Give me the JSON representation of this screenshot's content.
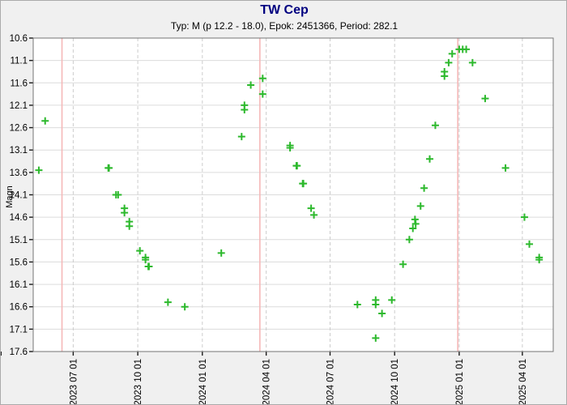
{
  "header": {
    "title": "TW Cep",
    "subtitle": "Typ: M (p 12.2 - 18.0), Epok: 2451366, Period: 282.1",
    "title_color": "#000080"
  },
  "colors": {
    "background": "#f0f0f0",
    "plot_background": "#ffffff",
    "marker_green": "#2db92d",
    "maxima_line_pink": "#f5b8b8",
    "h_gridline": "#dcdcdc",
    "v_gridline": "#cccccc",
    "axis_border": "#757575",
    "tick": "#1a1a1a",
    "label_text": "#000000"
  },
  "chart_data": {
    "type": "scatter",
    "title": "TW Cep",
    "subtitle": "Typ: M (p 12.2 - 18.0), Epok: 2451366, Period: 282.1",
    "xlabel": "",
    "ylabel": "Magn",
    "marker": "plus",
    "legend": "none",
    "y_axis": {
      "min": 10.6,
      "max": 17.6,
      "step": 0.5,
      "direction": "magnitude-increases-downward",
      "ticks": [
        "10.6",
        "11.1",
        "11.6",
        "12.1",
        "12.6",
        "13.1",
        "13.6",
        "14.1",
        "14.6",
        "15.1",
        "15.6",
        "16.1",
        "16.6",
        "17.1",
        "17.6"
      ]
    },
    "x_axis": {
      "min_date": "2023-05-05",
      "max_date": "2025-05-15",
      "minor_ticks": "monthly",
      "major_ticks": [
        {
          "label": "2023 07 01",
          "date": "2023-07-01"
        },
        {
          "label": "2023 10 01",
          "date": "2023-10-01"
        },
        {
          "label": "2024 01 01",
          "date": "2024-01-01"
        },
        {
          "label": "2024 04 01",
          "date": "2024-04-01"
        },
        {
          "label": "2024 07 01",
          "date": "2024-07-01"
        },
        {
          "label": "2024 10 01",
          "date": "2024-10-01"
        },
        {
          "label": "2025 01 01",
          "date": "2025-01-01"
        },
        {
          "label": "2025 04 01",
          "date": "2025-04-01"
        }
      ]
    },
    "maxima_lines": [
      "2023-06-15",
      "2024-03-23",
      "2024-12-30"
    ],
    "points": [
      {
        "date": "2023-05-13",
        "mag": 13.55
      },
      {
        "date": "2023-05-22",
        "mag": 12.45
      },
      {
        "date": "2023-08-20",
        "mag": 13.5
      },
      {
        "date": "2023-08-21",
        "mag": 13.5
      },
      {
        "date": "2023-08-31",
        "mag": 14.1
      },
      {
        "date": "2023-09-03",
        "mag": 14.1
      },
      {
        "date": "2023-09-12",
        "mag": 14.4
      },
      {
        "date": "2023-09-12",
        "mag": 14.5
      },
      {
        "date": "2023-09-19",
        "mag": 14.7
      },
      {
        "date": "2023-09-19",
        "mag": 14.8
      },
      {
        "date": "2023-10-04",
        "mag": 15.35
      },
      {
        "date": "2023-10-12",
        "mag": 15.5
      },
      {
        "date": "2023-10-12",
        "mag": 15.55
      },
      {
        "date": "2023-10-16",
        "mag": 15.7
      },
      {
        "date": "2023-10-17",
        "mag": 15.7
      },
      {
        "date": "2023-11-13",
        "mag": 16.5
      },
      {
        "date": "2023-12-07",
        "mag": 16.6
      },
      {
        "date": "2024-01-28",
        "mag": 15.4
      },
      {
        "date": "2024-02-26",
        "mag": 12.8
      },
      {
        "date": "2024-03-01",
        "mag": 12.1
      },
      {
        "date": "2024-03-01",
        "mag": 12.2
      },
      {
        "date": "2024-03-10",
        "mag": 11.65
      },
      {
        "date": "2024-03-27",
        "mag": 11.5
      },
      {
        "date": "2024-03-27",
        "mag": 11.85
      },
      {
        "date": "2024-05-05",
        "mag": 13.0
      },
      {
        "date": "2024-05-05",
        "mag": 13.05
      },
      {
        "date": "2024-05-14",
        "mag": 13.45
      },
      {
        "date": "2024-05-15",
        "mag": 13.45
      },
      {
        "date": "2024-05-23",
        "mag": 13.85
      },
      {
        "date": "2024-05-24",
        "mag": 13.85
      },
      {
        "date": "2024-06-04",
        "mag": 14.4
      },
      {
        "date": "2024-06-08",
        "mag": 14.55
      },
      {
        "date": "2024-08-09",
        "mag": 16.55
      },
      {
        "date": "2024-09-04",
        "mag": 16.45
      },
      {
        "date": "2024-09-04",
        "mag": 16.55
      },
      {
        "date": "2024-09-04",
        "mag": 17.3
      },
      {
        "date": "2024-09-13",
        "mag": 16.75
      },
      {
        "date": "2024-09-27",
        "mag": 16.45
      },
      {
        "date": "2024-10-13",
        "mag": 15.65
      },
      {
        "date": "2024-10-22",
        "mag": 15.1
      },
      {
        "date": "2024-10-27",
        "mag": 14.85
      },
      {
        "date": "2024-10-30",
        "mag": 14.65
      },
      {
        "date": "2024-10-31",
        "mag": 14.75
      },
      {
        "date": "2024-11-07",
        "mag": 14.35
      },
      {
        "date": "2024-11-12",
        "mag": 13.95
      },
      {
        "date": "2024-11-20",
        "mag": 13.3
      },
      {
        "date": "2024-11-28",
        "mag": 12.55
      },
      {
        "date": "2024-12-11",
        "mag": 11.35
      },
      {
        "date": "2024-12-11",
        "mag": 11.45
      },
      {
        "date": "2024-12-17",
        "mag": 11.15
      },
      {
        "date": "2024-12-22",
        "mag": 10.95
      },
      {
        "date": "2025-01-01",
        "mag": 10.85
      },
      {
        "date": "2025-01-06",
        "mag": 10.85
      },
      {
        "date": "2025-01-11",
        "mag": 10.85
      },
      {
        "date": "2025-01-20",
        "mag": 11.15
      },
      {
        "date": "2025-02-07",
        "mag": 11.95
      },
      {
        "date": "2025-03-08",
        "mag": 13.5
      },
      {
        "date": "2025-04-04",
        "mag": 14.6
      },
      {
        "date": "2025-04-11",
        "mag": 15.2
      },
      {
        "date": "2025-04-25",
        "mag": 15.5
      },
      {
        "date": "2025-04-25",
        "mag": 15.55
      }
    ]
  }
}
